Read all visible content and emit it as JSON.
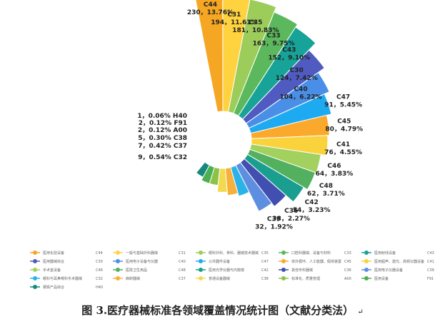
{
  "caption": "图 3.医疗器械标准各领域覆盖情况统计图（文献分类法）",
  "caption_mark": "↵",
  "chart_data": {
    "type": "pie",
    "style": "nightingale-rose",
    "slices": [
      {
        "code": "C44",
        "label": "230，13.76%",
        "value": 230,
        "percent": 13.76,
        "color": "#F5A623",
        "legend": "医用化验设备"
      },
      {
        "code": "C31",
        "label": "194，11.61%",
        "value": 194,
        "percent": 11.61,
        "color": "#FFD23F",
        "legend": "一般与基础外科器械"
      },
      {
        "code": "C35",
        "label": "181，10.83%",
        "value": 181,
        "percent": 10.83,
        "color": "#9CCC5A",
        "legend": "眼科外科、骨科、器械技术器械"
      },
      {
        "code": "C33",
        "label": "163，9.75%",
        "value": 163,
        "percent": 9.75,
        "color": "#5CB85C",
        "legend": "口腔科器械、设备与材料"
      },
      {
        "code": "C43",
        "label": "152，9.10%",
        "value": 152,
        "percent": 9.1,
        "color": "#17A398",
        "legend": "医用射线设备"
      },
      {
        "code": "C30",
        "label": "124，7.42%",
        "value": 124,
        "percent": 7.42,
        "color": "#4F5BC1",
        "legend": "医用器械综合"
      },
      {
        "code": "C40",
        "label": "104，6.22%",
        "value": 104,
        "percent": 6.22,
        "color": "#4A8FE7",
        "legend": "医用电子设备与仪器"
      },
      {
        "code": "C47",
        "label": "91，5.45%",
        "value": 91,
        "percent": 5.45,
        "color": "#1EAAF1",
        "legend": "公共器件设备"
      },
      {
        "code": "C45",
        "label": "80，4.79%",
        "value": 80,
        "percent": 4.79,
        "color": "#FBA92C",
        "legend": "体外循环、人工脏器、假体装置"
      },
      {
        "code": "C41",
        "label": "76，4.55%",
        "value": 76,
        "percent": 4.55,
        "color": "#F9D23C",
        "legend": "医用超声、激光、高频仪器设备"
      },
      {
        "code": "C46",
        "label": "64，3.83%",
        "value": 64,
        "percent": 3.83,
        "color": "#A3D15F",
        "legend": "手术室设备"
      },
      {
        "code": "C48",
        "label": "62，3.71%",
        "value": 62,
        "percent": 3.71,
        "color": "#52B05E",
        "legend": "医院卫生用品"
      },
      {
        "code": "C42",
        "label": "54，3.23%",
        "value": 54,
        "percent": 3.23,
        "color": "#1A9E8F",
        "legend": "医用光学仪器与内窥镜"
      },
      {
        "code": "C36",
        "label": "38，2.27%",
        "value": 38,
        "percent": 2.27,
        "color": "#4150B0",
        "legend": "其他专科器械"
      },
      {
        "code": "C39",
        "label": "32，1.92%",
        "value": 32,
        "percent": 1.92,
        "color": "#5E8EE0",
        "legend": "医用电子仪器设备"
      },
      {
        "code": "C32",
        "label": "9，0.54%",
        "value": 9,
        "percent": 0.54,
        "color": "#2BB3E8",
        "legend": "眼科与耳鼻喉科手术器械"
      },
      {
        "code": "C37",
        "label": "7，0.42%",
        "value": 7,
        "percent": 0.42,
        "color": "#F7B03C",
        "legend": "麻醉器械"
      },
      {
        "code": "C38",
        "label": "5，0.30%",
        "value": 5,
        "percent": 0.3,
        "color": "#F2DA4E",
        "legend": "普通设备器械"
      },
      {
        "code": "A00",
        "label": "2，0.12%",
        "value": 2,
        "percent": 0.12,
        "color": "#8BC34A",
        "legend": "标准化、质量管理"
      },
      {
        "code": "F91",
        "label": "2，0.12%",
        "value": 2,
        "percent": 0.12,
        "color": "#4CAF50",
        "legend": "医用设备"
      },
      {
        "code": "H40",
        "label": "1，0.06%",
        "value": 1,
        "percent": 0.06,
        "color": "#16887E",
        "legend": "钢铁产品综合"
      }
    ]
  }
}
